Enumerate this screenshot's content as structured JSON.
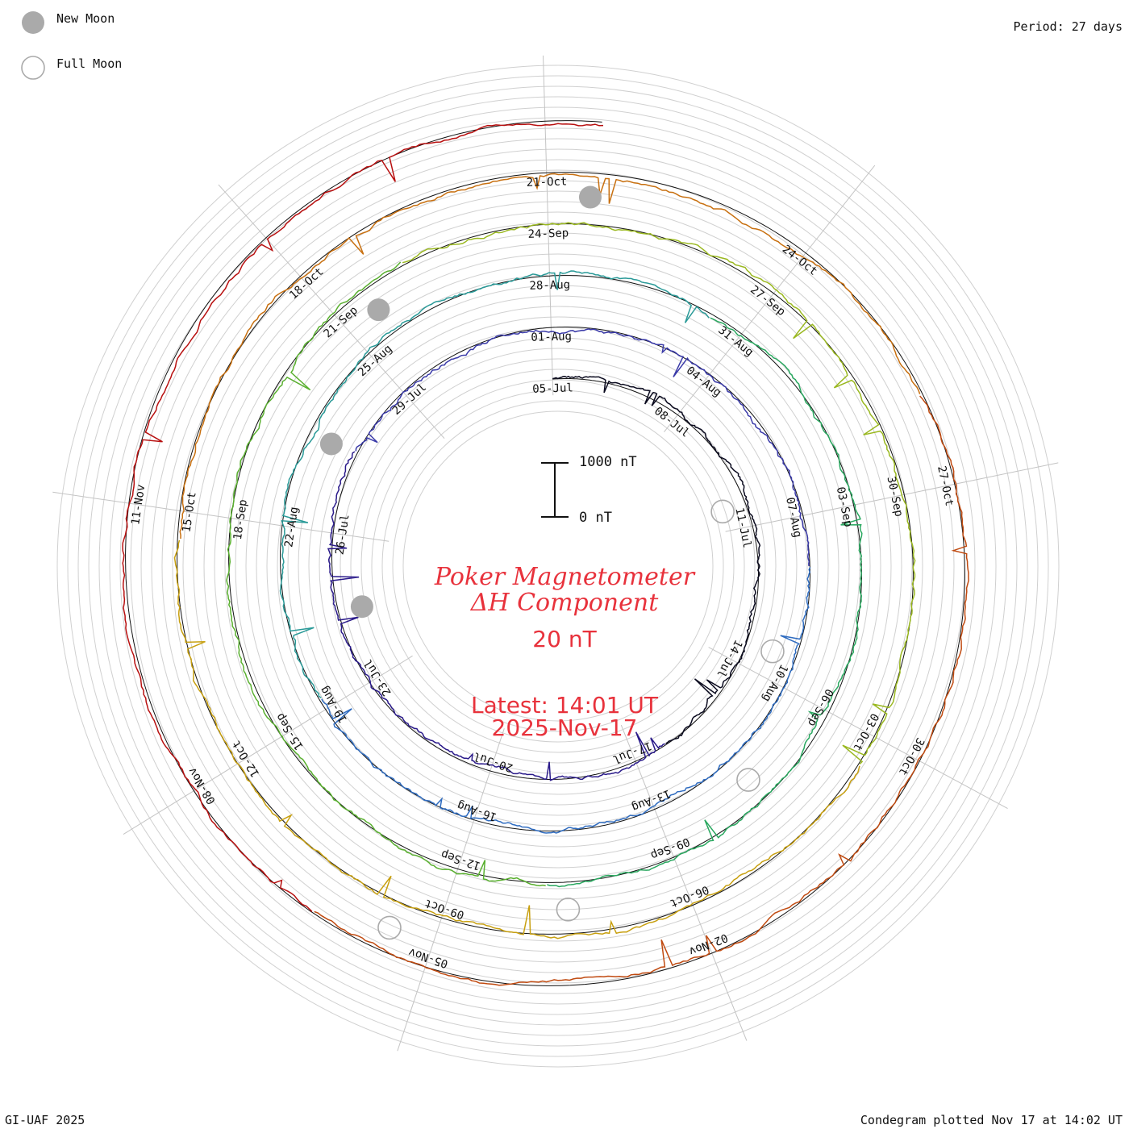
{
  "legend": {
    "new_moon_label": "New Moon",
    "full_moon_label": "Full Moon",
    "new_moon_color": "#aaaaaa",
    "full_moon_color": "#aaaaaa"
  },
  "period_label": "Period: 27 days",
  "footer": {
    "left": "GI-UAF 2025",
    "right": "Condegram plotted Nov 17 at 14:02 UT"
  },
  "center": {
    "title_line1": "Poker Magnetometer",
    "title_line2": "ΔH Component",
    "ring_scale": "20 nT",
    "latest_line1": "Latest: 14:01 UT",
    "latest_line2": "2025-Nov-17",
    "title_color": "#e8323c"
  },
  "scale_bar": {
    "top_label": "1000 nT",
    "bottom_label": "0 nT"
  },
  "chart_data": {
    "type": "line",
    "subtype": "spiral condegram",
    "period_days": 27,
    "start_date": "2025-07-05",
    "end_date": "2025-11-17",
    "date_tick_labels": [
      "05-Jul",
      "08-Jul",
      "11-Jul",
      "14-Jul",
      "17-Jul",
      "20-Jul",
      "23-Jul",
      "26-Jul",
      "29-Jul",
      "01-Aug",
      "04-Aug",
      "07-Aug",
      "10-Aug",
      "13-Aug",
      "16-Aug",
      "19-Aug",
      "22-Aug",
      "25-Aug",
      "28-Aug",
      "31-Aug",
      "03-Sep",
      "06-Sep",
      "09-Sep",
      "12-Sep",
      "15-Sep",
      "18-Sep",
      "21-Sep",
      "24-Sep",
      "27-Sep",
      "30-Sep",
      "03-Oct",
      "06-Oct",
      "09-Oct",
      "12-Oct",
      "15-Oct",
      "18-Oct",
      "21-Oct",
      "24-Oct",
      "27-Oct",
      "30-Oct",
      "02-Nov",
      "05-Nov",
      "08-Nov",
      "11-Nov"
    ],
    "new_moons": [
      "2025-07-24",
      "2025-08-23",
      "2025-09-21",
      "2025-10-21"
    ],
    "full_moons": [
      "2025-07-10",
      "2025-08-09",
      "2025-09-07",
      "2025-10-07",
      "2025-11-05"
    ],
    "series_colors": [
      "#0a0a1e",
      "#2a1a8a",
      "#3a3aa8",
      "#2f6cc0",
      "#2a9a98",
      "#2aa860",
      "#5ab030",
      "#9ab820",
      "#c8a010",
      "#c87010",
      "#c04a10",
      "#b81010"
    ],
    "grid": true
  }
}
